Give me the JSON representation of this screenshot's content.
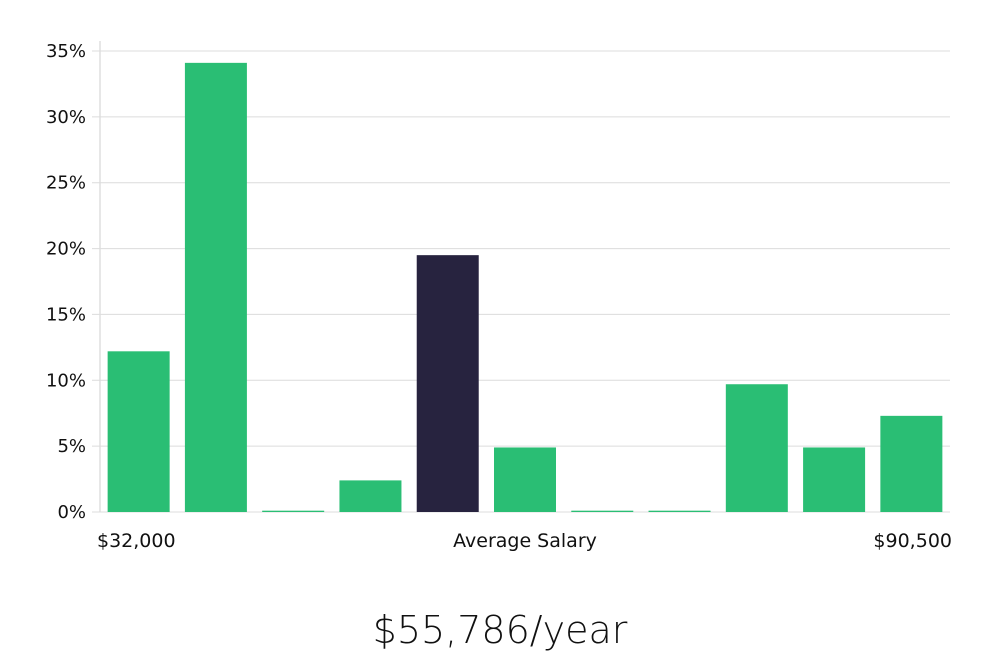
{
  "chart_data": {
    "type": "bar",
    "title": "",
    "ylim": [
      0,
      35
    ],
    "y_ticks": [
      "0%",
      "5%",
      "10%",
      "15%",
      "20%",
      "25%",
      "30%",
      "35%"
    ],
    "y_tick_values": [
      0,
      5,
      10,
      15,
      20,
      25,
      30,
      35
    ],
    "x_labels": {
      "left": "$32,000",
      "center": "Average Salary",
      "right": "$90,500"
    },
    "values": [
      12.2,
      34.1,
      0.1,
      2.4,
      19.5,
      4.9,
      0.1,
      0.1,
      9.7,
      4.9,
      7.3
    ],
    "highlight_index": 4,
    "grid": true,
    "colors": {
      "bar": "#2abe74",
      "highlight": "#27233f"
    }
  },
  "summary": {
    "salary_text": "$55,786/year"
  }
}
